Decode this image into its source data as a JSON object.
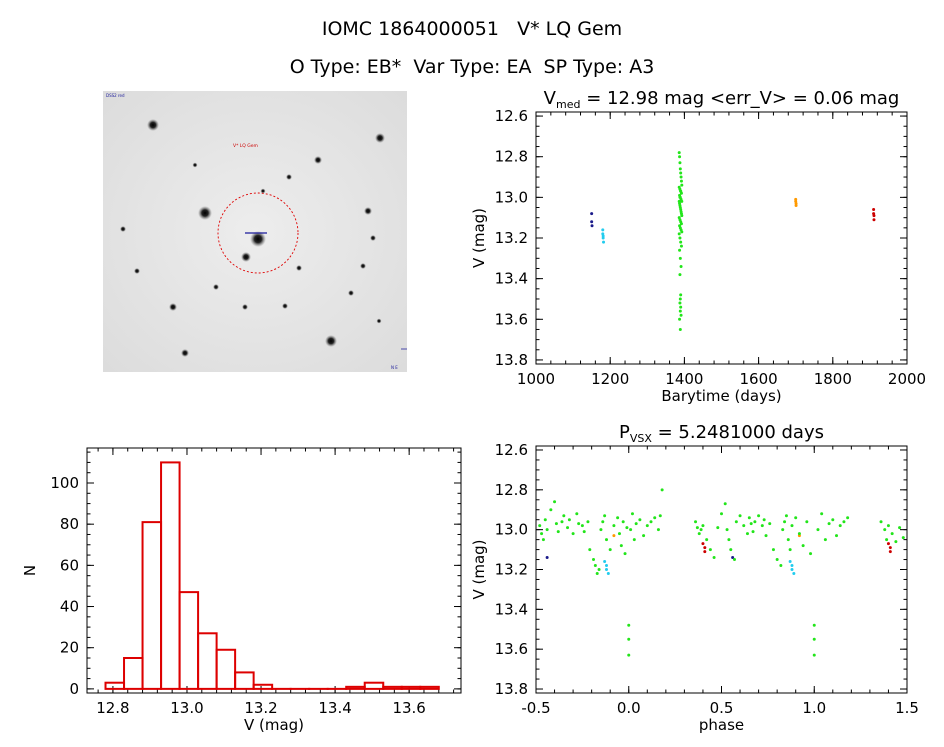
{
  "header": {
    "title_line1": "IOMC 1864000051   V* LQ Gem",
    "title_line2": "O Type: EB*  Var Type: EA  SP Type: A3"
  },
  "finder": {
    "target_label": "V* LQ Gem",
    "corner_labels": [
      "DSS2 red",
      "",
      "N E"
    ]
  },
  "colors": {
    "green": "#22e51a",
    "cyan": "#22ccee",
    "navy": "#1a1a8a",
    "orange": "#ff9900",
    "red": "#cc0000",
    "hist": "#dd0000"
  },
  "chart_data": [
    {
      "id": "light_curve",
      "type": "scatter",
      "title_main": "V",
      "title_sub": "med",
      "title_rest": " = 12.98 mag <err_V> = 0.06 mag",
      "xlabel": "Barytime (days)",
      "ylabel": "V (mag)",
      "xlim": [
        1000,
        2000
      ],
      "ylim": [
        13.82,
        12.58
      ],
      "x_ticks": [
        "1000",
        "1200",
        "1400",
        "1600",
        "1800",
        "2000"
      ],
      "y_ticks": [
        "12.6",
        "12.8",
        "13.0",
        "13.2",
        "13.4",
        "13.6",
        "13.8"
      ],
      "series": [
        {
          "color_key": "navy",
          "x": [
            1150,
            1150,
            1151
          ],
          "y": [
            13.08,
            13.12,
            13.14
          ]
        },
        {
          "color_key": "cyan",
          "x": [
            1180,
            1180,
            1181,
            1181,
            1182
          ],
          "y": [
            13.16,
            13.18,
            13.19,
            13.2,
            13.22
          ]
        },
        {
          "color_key": "orange",
          "x": [
            1700,
            1700,
            1701,
            1701
          ],
          "y": [
            13.01,
            13.02,
            13.03,
            13.04
          ]
        },
        {
          "color_key": "red",
          "x": [
            1910,
            1910,
            1911,
            1911
          ],
          "y": [
            13.06,
            13.08,
            13.09,
            13.11
          ]
        },
        {
          "color_key": "green",
          "x": [
            1386,
            1387,
            1388,
            1389,
            1390,
            1391,
            1392,
            1393,
            1386,
            1388,
            1390,
            1392,
            1387,
            1389,
            1391,
            1393,
            1386,
            1387,
            1388,
            1389,
            1390,
            1391,
            1392,
            1393,
            1386,
            1388,
            1390,
            1392,
            1387,
            1389,
            1391,
            1393,
            1386,
            1388,
            1390,
            1392,
            1387,
            1389,
            1391,
            1388,
            1390,
            1389,
            1388,
            1390,
            1389,
            1391,
            1387,
            1389,
            1388,
            1390
          ],
          "y": [
            12.78,
            12.8,
            12.83,
            12.86,
            12.88,
            12.9,
            12.92,
            12.94,
            12.95,
            12.96,
            12.97,
            12.98,
            12.99,
            13.0,
            13.01,
            13.02,
            13.02,
            13.03,
            13.04,
            13.05,
            13.06,
            13.07,
            13.08,
            13.09,
            13.1,
            13.11,
            13.12,
            13.13,
            13.14,
            13.15,
            13.16,
            13.17,
            13.18,
            13.2,
            13.22,
            13.24,
            13.26,
            13.3,
            13.34,
            13.38,
            13.48,
            13.5,
            13.52,
            13.54,
            13.56,
            13.58,
            13.6,
            13.65,
            13.0,
            12.97
          ]
        }
      ]
    },
    {
      "id": "histogram",
      "type": "bar",
      "xlabel": "V (mag)",
      "ylabel": "N",
      "xlim": [
        12.73,
        13.74
      ],
      "ylim": [
        -2,
        117
      ],
      "x_ticks": [
        "12.8",
        "13.0",
        "13.2",
        "13.4",
        "13.6"
      ],
      "y_ticks": [
        "0",
        "20",
        "40",
        "60",
        "80",
        "100"
      ],
      "bin_width": 0.05,
      "bin_edges": [
        12.78,
        12.83,
        12.88,
        12.93,
        12.98,
        13.03,
        13.08,
        13.13,
        13.18,
        13.23,
        13.28,
        13.33,
        13.38,
        13.43,
        13.48,
        13.53,
        13.58,
        13.63,
        13.68
      ],
      "values": [
        3,
        15,
        81,
        110,
        47,
        27,
        19,
        8,
        2,
        0,
        0,
        0,
        0,
        1,
        3,
        1,
        1,
        1
      ]
    },
    {
      "id": "phase_curve",
      "type": "scatter",
      "title_main": "P",
      "title_sub": "VSX",
      "title_rest": " = 5.2481000 days",
      "xlabel": "phase",
      "ylabel": "V (mag)",
      "period_days": 5.2481,
      "xlim": [
        -0.5,
        1.5
      ],
      "ylim": [
        13.82,
        12.58
      ],
      "x_ticks": [
        "-0.5",
        "0.0",
        "0.5",
        "1.0",
        "1.5"
      ],
      "y_ticks": [
        "12.6",
        "12.8",
        "13.0",
        "13.2",
        "13.4",
        "13.6",
        "13.8"
      ],
      "series": [
        {
          "color_key": "navy",
          "x": [
            -0.44,
            0.56
          ],
          "y": [
            13.14,
            13.14
          ]
        },
        {
          "color_key": "cyan",
          "x": [
            -0.13,
            -0.12,
            -0.12,
            -0.11,
            0.87,
            0.88,
            0.88,
            0.89
          ],
          "y": [
            13.16,
            13.18,
            13.2,
            13.22,
            13.16,
            13.18,
            13.2,
            13.22
          ]
        },
        {
          "color_key": "orange",
          "x": [
            -0.08,
            0.92
          ],
          "y": [
            13.03,
            13.03
          ]
        },
        {
          "color_key": "red",
          "x": [
            0.4,
            0.41,
            0.41,
            1.4,
            1.41,
            1.41
          ],
          "y": [
            13.07,
            13.09,
            13.11,
            13.07,
            13.09,
            13.11
          ]
        },
        {
          "color_key": "green",
          "x": [
            -0.48,
            -0.47,
            -0.46,
            -0.45,
            -0.44,
            -0.42,
            -0.4,
            -0.39,
            -0.38,
            -0.36,
            -0.35,
            -0.33,
            -0.32,
            -0.3,
            -0.28,
            -0.27,
            -0.25,
            -0.24,
            -0.22,
            -0.21,
            -0.19,
            -0.18,
            -0.17,
            -0.16,
            -0.15,
            -0.14,
            -0.13,
            -0.12,
            -0.1,
            -0.08,
            -0.06,
            -0.05,
            -0.04,
            -0.03,
            -0.02,
            -0.01,
            0.0,
            0.0,
            0.0,
            0.01,
            0.02,
            0.03,
            0.04,
            0.06,
            0.08,
            0.1,
            0.12,
            0.14,
            0.16,
            0.17,
            0.18,
            0.36,
            0.37,
            0.38,
            0.39,
            0.4,
            0.42,
            0.44,
            0.46,
            0.48,
            0.5,
            0.52,
            0.53,
            0.54,
            0.55,
            0.57,
            0.58,
            0.6,
            0.62,
            0.64,
            0.65,
            0.66,
            0.67,
            0.68,
            0.7,
            0.72,
            0.73,
            0.74,
            0.76,
            0.78,
            0.8,
            0.82,
            0.83,
            0.84,
            0.85,
            0.86,
            0.87,
            0.88,
            0.9,
            0.92,
            0.94,
            0.96,
            0.98,
            1.0,
            1.0,
            1.0,
            1.02,
            1.04,
            1.06,
            1.08,
            1.1,
            1.12,
            1.14,
            1.16,
            1.18,
            1.36,
            1.38,
            1.39,
            1.4,
            1.42,
            1.44,
            1.46,
            1.48
          ],
          "y": [
            12.98,
            13.02,
            13.05,
            12.95,
            13.0,
            12.9,
            12.86,
            12.97,
            13.01,
            12.96,
            12.93,
            12.99,
            12.95,
            13.02,
            12.92,
            12.97,
            12.98,
            13.01,
            12.96,
            13.1,
            13.15,
            13.18,
            13.22,
            13.2,
            13.0,
            12.96,
            12.93,
            13.05,
            13.1,
            12.98,
            12.94,
            13.02,
            13.08,
            12.96,
            13.12,
            12.99,
            13.48,
            13.55,
            13.63,
            13.0,
            12.92,
            13.05,
            12.97,
            12.95,
            13.03,
            12.98,
            12.96,
            12.94,
            13.0,
            12.93,
            12.8,
            12.96,
            12.99,
            13.02,
            13.0,
            12.98,
            13.05,
            13.1,
            13.14,
            12.99,
            12.92,
            12.87,
            13.0,
            13.05,
            13.1,
            13.15,
            12.96,
            12.93,
            12.98,
            13.02,
            12.94,
            12.97,
            13.01,
            12.96,
            12.93,
            12.98,
            12.95,
            13.03,
            12.97,
            13.1,
            13.15,
            13.18,
            13.0,
            12.96,
            12.93,
            13.05,
            13.1,
            12.98,
            12.94,
            13.02,
            13.08,
            12.96,
            13.12,
            13.48,
            13.55,
            13.63,
            13.0,
            12.92,
            13.05,
            12.97,
            12.95,
            13.03,
            12.98,
            12.96,
            12.94,
            12.96,
            13.0,
            13.05,
            12.98,
            13.02,
            13.06,
            12.99,
            13.04
          ]
        }
      ]
    }
  ]
}
